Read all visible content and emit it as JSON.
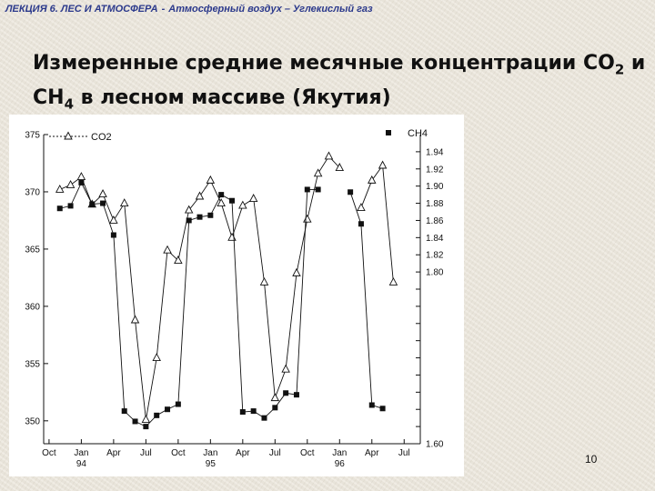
{
  "header": {
    "lecture": "ЛЕКЦИЯ 6. ЛЕС И АТМОСФЕРА",
    "separator": "-",
    "topic": "Атмосферный воздух – Углекислый газ"
  },
  "slide": {
    "title_line1_pre": "Измеренные средние месячные концентрации CO",
    "title_line1_sub": "2",
    "title_line1_post": " и",
    "title_line2_pre": "CH",
    "title_line2_sub": "4",
    "title_line2_post": " в лесном массиве (Якутия)",
    "page_number": "10"
  },
  "chart_data": {
    "type": "line",
    "x_ticks": [
      {
        "month": 0,
        "label": "Oct"
      },
      {
        "month": 3,
        "label": "Jan"
      },
      {
        "month": 6,
        "label": "Apr"
      },
      {
        "month": 9,
        "label": "Jul"
      },
      {
        "month": 12,
        "label": "Oct"
      },
      {
        "month": 15,
        "label": "Jan"
      },
      {
        "month": 18,
        "label": "Apr"
      },
      {
        "month": 21,
        "label": "Jul"
      },
      {
        "month": 24,
        "label": "Oct"
      },
      {
        "month": 27,
        "label": "Jan"
      },
      {
        "month": 30,
        "label": "Apr"
      },
      {
        "month": 33,
        "label": "Jul"
      }
    ],
    "year_labels": [
      {
        "month": 3,
        "label": "94"
      },
      {
        "month": 15,
        "label": "95"
      },
      {
        "month": 27,
        "label": "96"
      }
    ],
    "x_range": [
      -0.5,
      34.5
    ],
    "left_axis": {
      "ylim": [
        348,
        375
      ],
      "ticks": [
        350,
        355,
        360,
        365,
        370,
        375
      ]
    },
    "right_axis": {
      "ylim": [
        1.6,
        1.96
      ],
      "ticks": [
        "1.60",
        "1.62",
        "1.64",
        "1.66",
        "1.68",
        "1.70",
        "1.72",
        "1.74",
        "1.76",
        "1.78",
        "1.80",
        "1.82",
        "1.84",
        "1.86",
        "1.88",
        "1.90",
        "1.92",
        "1.94"
      ]
    },
    "series": [
      {
        "name": "CO2",
        "axis": "left",
        "marker": "triangle",
        "segments": [
          [
            [
              1,
              370.2
            ],
            [
              2,
              370.6
            ],
            [
              3,
              371.3
            ],
            [
              4,
              368.9
            ],
            [
              5,
              369.8
            ],
            [
              6,
              367.5
            ],
            [
              7,
              369.0
            ],
            [
              8,
              358.8
            ],
            [
              9,
              350.1
            ],
            [
              10,
              355.5
            ],
            [
              11,
              364.9
            ],
            [
              12,
              364.0
            ],
            [
              13,
              368.4
            ],
            [
              14,
              369.6
            ],
            [
              15,
              371.0
            ],
            [
              16,
              369.0
            ],
            [
              17,
              366.0
            ],
            [
              18,
              368.8
            ],
            [
              19,
              369.4
            ],
            [
              20,
              362.1
            ],
            [
              21,
              352.0
            ],
            [
              22,
              354.5
            ],
            [
              23,
              362.9
            ],
            [
              24,
              367.6
            ],
            [
              25,
              371.6
            ],
            [
              26,
              373.1
            ],
            [
              27,
              372.1
            ]
          ],
          [
            [
              29,
              368.6
            ],
            [
              30,
              371.0
            ],
            [
              31,
              372.3
            ],
            [
              32,
              362.1
            ]
          ]
        ]
      },
      {
        "name": "CH4",
        "axis": "right",
        "marker": "square",
        "segments": [
          [
            [
              1,
              1.874
            ],
            [
              2,
              1.877
            ],
            [
              3,
              1.904
            ],
            [
              4,
              1.879
            ],
            [
              5,
              1.88
            ],
            [
              6,
              1.843
            ],
            [
              7,
              1.638
            ],
            [
              8,
              1.626
            ],
            [
              9,
              1.62
            ],
            [
              10,
              1.633
            ],
            [
              11,
              1.64
            ],
            [
              12,
              1.646
            ],
            [
              13,
              1.86
            ],
            [
              14,
              1.864
            ],
            [
              15,
              1.866
            ],
            [
              16,
              1.89
            ],
            [
              17,
              1.883
            ],
            [
              18,
              1.637
            ],
            [
              19,
              1.638
            ],
            [
              20,
              1.63
            ],
            [
              21,
              1.642
            ],
            [
              22,
              1.659
            ],
            [
              23,
              1.657
            ],
            [
              24,
              1.896
            ],
            [
              25,
              1.896
            ]
          ],
          [
            [
              28,
              1.893
            ],
            [
              29,
              1.856
            ],
            [
              30,
              1.645
            ],
            [
              31,
              1.641
            ]
          ]
        ]
      }
    ],
    "legend": [
      {
        "name": "CO2",
        "marker": "triangle",
        "placement": "top-left"
      },
      {
        "name": "CH4",
        "marker": "square",
        "placement": "top-right"
      }
    ],
    "grid": false
  },
  "colors": {
    "accent_header": "#2c3a8c",
    "chart_ink": "#111111"
  }
}
